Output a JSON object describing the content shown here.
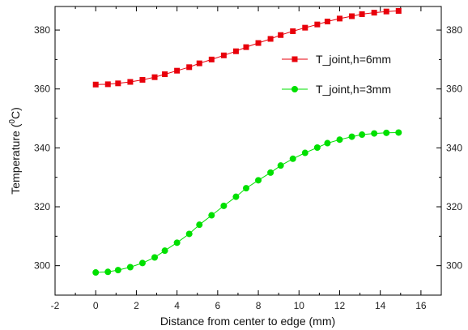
{
  "chart_data": {
    "type": "line",
    "xlabel": "Distance from center to edge (mm)",
    "ylabel_prefix": "Temperature (",
    "ylabel_sup": "0",
    "ylabel_suffix": "C)",
    "xlim": [
      -2,
      17
    ],
    "ylim": [
      290,
      388
    ],
    "x_ticks": [
      -2,
      0,
      2,
      4,
      6,
      8,
      10,
      12,
      14,
      16
    ],
    "y_ticks": [
      300,
      320,
      340,
      360,
      380
    ],
    "grid": false,
    "legend_position": "upper-right",
    "right_axis_mirrors_left": true,
    "series": [
      {
        "name": "T_joint,h=6mm",
        "color": "#e8000b",
        "marker": "square",
        "x": [
          0,
          0.6,
          1.1,
          1.7,
          2.3,
          2.9,
          3.4,
          4.0,
          4.6,
          5.1,
          5.7,
          6.3,
          6.9,
          7.4,
          8.0,
          8.6,
          9.1,
          9.7,
          10.3,
          10.9,
          11.4,
          12.0,
          12.6,
          13.1,
          13.7,
          14.3,
          14.9
        ],
        "values": [
          361.5,
          361.6,
          361.9,
          362.4,
          363.1,
          364.0,
          365.0,
          366.2,
          367.4,
          368.7,
          370.0,
          371.4,
          372.8,
          374.2,
          375.6,
          377.0,
          378.3,
          379.6,
          380.8,
          381.9,
          382.9,
          383.9,
          384.7,
          385.4,
          385.9,
          386.3,
          386.5
        ]
      },
      {
        "name": "T_joint,h=3mm",
        "color": "#00e000",
        "marker": "circle",
        "x": [
          0,
          0.6,
          1.1,
          1.7,
          2.3,
          2.9,
          3.4,
          4.0,
          4.6,
          5.1,
          5.7,
          6.3,
          6.9,
          7.4,
          8.0,
          8.6,
          9.1,
          9.7,
          10.3,
          10.9,
          11.4,
          12.0,
          12.6,
          13.1,
          13.7,
          14.3,
          14.9
        ],
        "values": [
          297.7,
          297.9,
          298.5,
          299.5,
          300.9,
          302.8,
          305.1,
          307.8,
          310.8,
          313.9,
          317.1,
          320.3,
          323.4,
          326.3,
          329.0,
          331.6,
          334.0,
          336.3,
          338.3,
          340.1,
          341.6,
          342.8,
          343.8,
          344.5,
          344.9,
          345.1,
          345.2
        ]
      }
    ]
  }
}
